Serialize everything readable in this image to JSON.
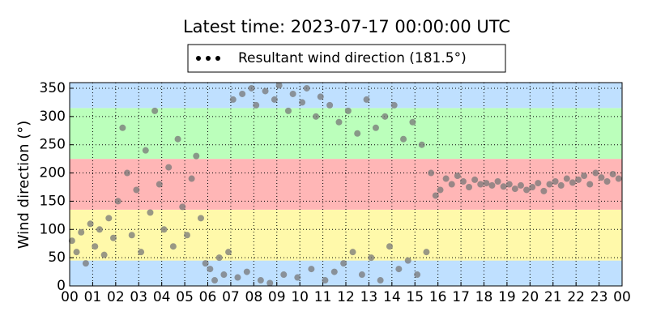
{
  "chart_data": {
    "type": "scatter",
    "title": "Latest time: 2023-07-17 00:00:00 UTC",
    "ylabel": "Wind direction (°)",
    "xlim": [
      0,
      24
    ],
    "ylim": [
      0,
      360
    ],
    "xticks": [
      {
        "value": 0,
        "label": "00"
      },
      {
        "value": 1,
        "label": "01"
      },
      {
        "value": 2,
        "label": "02"
      },
      {
        "value": 3,
        "label": "03"
      },
      {
        "value": 4,
        "label": "04"
      },
      {
        "value": 5,
        "label": "05"
      },
      {
        "value": 6,
        "label": "06"
      },
      {
        "value": 7,
        "label": "07"
      },
      {
        "value": 8,
        "label": "08"
      },
      {
        "value": 9,
        "label": "09"
      },
      {
        "value": 10,
        "label": "10"
      },
      {
        "value": 11,
        "label": "11"
      },
      {
        "value": 12,
        "label": "12"
      },
      {
        "value": 13,
        "label": "13"
      },
      {
        "value": 14,
        "label": "14"
      },
      {
        "value": 15,
        "label": "15"
      },
      {
        "value": 16,
        "label": "16"
      },
      {
        "value": 17,
        "label": "17"
      },
      {
        "value": 18,
        "label": "18"
      },
      {
        "value": 19,
        "label": "19"
      },
      {
        "value": 20,
        "label": "20"
      },
      {
        "value": 21,
        "label": "21"
      },
      {
        "value": 22,
        "label": "22"
      },
      {
        "value": 23,
        "label": "23"
      },
      {
        "value": 24,
        "label": "00"
      }
    ],
    "yticks": [
      0,
      50,
      100,
      150,
      200,
      250,
      300,
      350
    ],
    "grid": true,
    "bands": [
      {
        "from": 0,
        "to": 45,
        "color": "#bfe0ff"
      },
      {
        "from": 45,
        "to": 135,
        "color": "#fff9aa"
      },
      {
        "from": 135,
        "to": 225,
        "color": "#ffb6b6"
      },
      {
        "from": 225,
        "to": 315,
        "color": "#bbffbb"
      },
      {
        "from": 315,
        "to": 360,
        "color": "#bfe0ff"
      }
    ],
    "legend": "top",
    "series": [
      {
        "name": "Resultant wind direction (181.5°)",
        "color": "#777777",
        "x": [
          0.1,
          0.3,
          0.5,
          0.7,
          0.9,
          1.1,
          1.3,
          1.5,
          1.7,
          1.9,
          2.1,
          2.3,
          2.5,
          2.7,
          2.9,
          3.1,
          3.3,
          3.5,
          3.7,
          3.9,
          4.1,
          4.3,
          4.5,
          4.7,
          4.9,
          5.1,
          5.3,
          5.5,
          5.7,
          5.9,
          6.1,
          6.3,
          6.5,
          6.7,
          6.9,
          7.1,
          7.3,
          7.5,
          7.7,
          7.9,
          8.1,
          8.3,
          8.5,
          8.7,
          8.9,
          9.1,
          9.3,
          9.5,
          9.7,
          9.9,
          10.1,
          10.3,
          10.5,
          10.7,
          10.9,
          11.1,
          11.3,
          11.5,
          11.7,
          11.9,
          12.1,
          12.3,
          12.5,
          12.7,
          12.9,
          13.1,
          13.3,
          13.5,
          13.7,
          13.9,
          14.1,
          14.3,
          14.5,
          14.7,
          14.9,
          15.1,
          15.3,
          15.5,
          15.7,
          15.9,
          16.1,
          16.35,
          16.6,
          16.85,
          17.1,
          17.35,
          17.6,
          17.85,
          18.1,
          18.35,
          18.6,
          18.85,
          19.1,
          19.35,
          19.6,
          19.85,
          20.1,
          20.35,
          20.6,
          20.85,
          21.1,
          21.35,
          21.6,
          21.85,
          22.1,
          22.35,
          22.6,
          22.85,
          23.1,
          23.35,
          23.6,
          23.85
        ],
        "values": [
          80,
          60,
          95,
          40,
          110,
          70,
          100,
          55,
          120,
          85,
          150,
          280,
          200,
          90,
          170,
          60,
          240,
          130,
          310,
          180,
          100,
          210,
          70,
          260,
          140,
          90,
          190,
          230,
          120,
          40,
          30,
          10,
          50,
          20,
          60,
          330,
          15,
          340,
          25,
          350,
          320,
          10,
          345,
          5,
          330,
          355,
          20,
          310,
          340,
          15,
          325,
          350,
          30,
          300,
          335,
          10,
          320,
          25,
          290,
          40,
          310,
          60,
          270,
          20,
          330,
          50,
          280,
          10,
          300,
          70,
          320,
          30,
          260,
          45,
          290,
          20,
          250,
          60,
          200,
          160,
          170,
          190,
          180,
          195,
          185,
          175,
          188,
          180,
          182,
          178,
          185,
          176,
          180,
          172,
          178,
          170,
          175,
          182,
          168,
          180,
          185,
          178,
          190,
          183,
          188,
          195,
          180,
          200,
          192,
          185,
          198,
          190
        ]
      }
    ]
  }
}
